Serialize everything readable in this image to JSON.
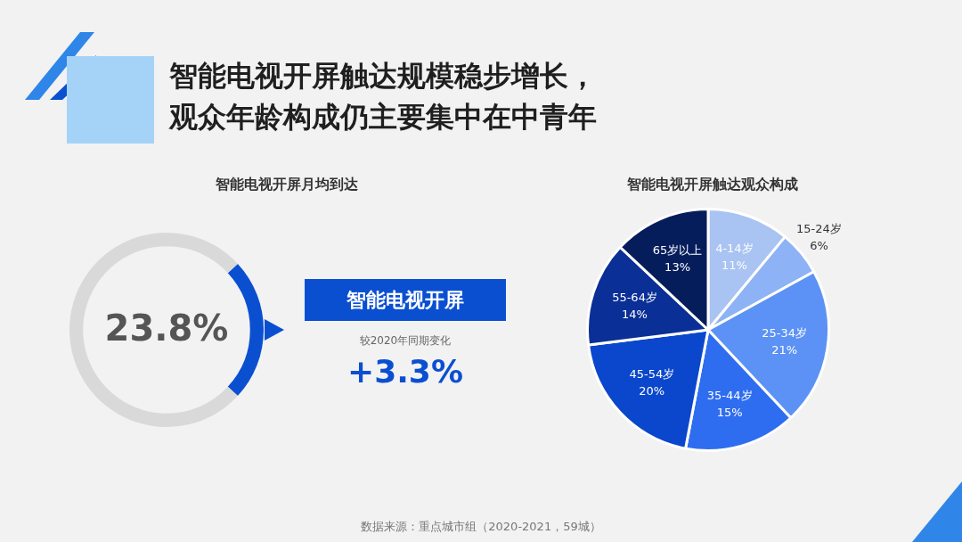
{
  "chart_data": [
    {
      "type": "other",
      "title": "智能电视开屏触达规模稳步增长，观众年龄构成仍主要集中在中青年",
      "annotations": [
        "数据来源：重点城市组（2020-2021，59城）"
      ]
    },
    {
      "type": "donut",
      "title": "智能电视开屏月均到达",
      "categories": [
        null,
        null
      ],
      "values": [
        23.8,
        76.2
      ],
      "colors": [
        "#0b4fd1",
        "#d9d9d9"
      ],
      "annotations": [
        "23.8%",
        "智能电视开屏",
        "较2020年同期变化",
        "+3.3%"
      ]
    },
    {
      "type": "pie",
      "title": "智能电视开屏触达观众构成",
      "categories": [
        "4-14岁",
        "15-24岁",
        "25-34岁",
        "35-44岁",
        "45-54岁",
        "55-64岁",
        "65岁以上"
      ],
      "values": [
        11,
        6,
        21,
        15,
        20,
        14,
        13
      ],
      "colors": [
        "#a9c3f2",
        "#8db2f5",
        "#5c92f5",
        "#2f6df0",
        "#0b47cc",
        "#0a2f96",
        "#061d5c"
      ],
      "value_labels": [
        "11%",
        "6%",
        "21%",
        "15%",
        "20%",
        "14%",
        "13%"
      ]
    }
  ]
}
